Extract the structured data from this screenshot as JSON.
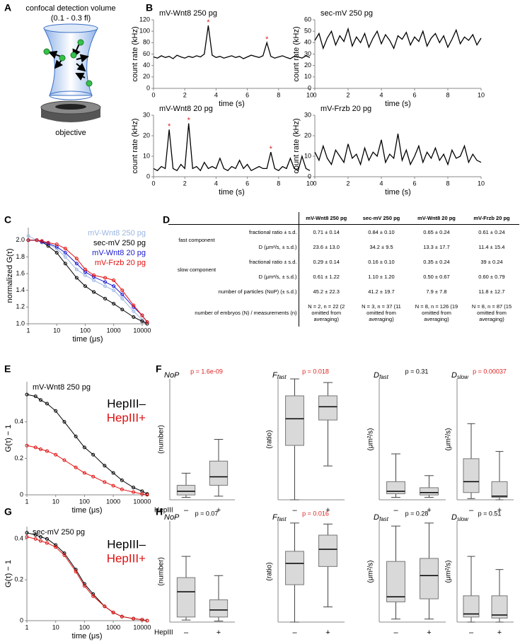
{
  "panel_labels": [
    "A",
    "B",
    "C",
    "D",
    "E",
    "F",
    "G",
    "H"
  ],
  "diagram": {
    "title": "confocal detection volume",
    "subtitle": "(0.1 - 0.3 fl)",
    "caption": "objective"
  },
  "chart_data": [
    {
      "type": "line",
      "title": "mV-Wnt8 250 pg",
      "xlabel": "time (s)",
      "ylabel": "count rate (kHz)",
      "xlim": [
        0,
        10
      ],
      "xticks": [
        0,
        2,
        4,
        6,
        8,
        10
      ],
      "ylim": [
        0,
        120
      ],
      "yticks": [
        0,
        20,
        40,
        60,
        80,
        100,
        120
      ],
      "color": "#000000",
      "x": [
        0,
        0.25,
        0.5,
        0.75,
        1,
        1.25,
        1.5,
        1.75,
        2,
        2.25,
        2.5,
        2.75,
        3,
        3.25,
        3.5,
        3.75,
        4,
        4.25,
        4.5,
        4.75,
        5,
        5.25,
        5.5,
        5.75,
        6,
        6.25,
        6.5,
        6.75,
        7,
        7.25,
        7.5,
        7.75,
        8,
        8.25,
        8.5,
        8.75,
        9,
        9.25,
        9.5,
        9.75,
        10
      ],
      "values": [
        55,
        53,
        57,
        54,
        56,
        52,
        58,
        55,
        53,
        56,
        54,
        57,
        55,
        60,
        110,
        58,
        54,
        56,
        53,
        55,
        57,
        54,
        56,
        52,
        55,
        58,
        56,
        54,
        57,
        80,
        56,
        53,
        55,
        57,
        54,
        52,
        56,
        55,
        53,
        57,
        54
      ],
      "annotations": [
        {
          "text": "*",
          "x": 3.5,
          "y": 110
        },
        {
          "text": "*",
          "x": 7.25,
          "y": 80
        }
      ],
      "annotation_color": "#e02020"
    },
    {
      "type": "line",
      "title": "sec-mV 250 pg",
      "xlabel": "time (s)",
      "ylabel": "count rate (kHz)",
      "xlim": [
        0,
        10
      ],
      "xticks": [
        0,
        2,
        4,
        6,
        8,
        10
      ],
      "ylim": [
        0,
        60
      ],
      "yticks": [
        0,
        10,
        20,
        30,
        40,
        50,
        60
      ],
      "color": "#000000",
      "x": [
        0,
        0.25,
        0.5,
        0.75,
        1,
        1.25,
        1.5,
        1.75,
        2,
        2.25,
        2.5,
        2.75,
        3,
        3.25,
        3.5,
        3.75,
        4,
        4.25,
        4.5,
        4.75,
        5,
        5.25,
        5.5,
        5.75,
        6,
        6.25,
        6.5,
        6.75,
        7,
        7.25,
        7.5,
        7.75,
        8,
        8.25,
        8.5,
        8.75,
        9,
        9.25,
        9.5,
        9.75,
        10
      ],
      "values": [
        42,
        48,
        35,
        44,
        50,
        38,
        46,
        41,
        52,
        37,
        45,
        40,
        48,
        36,
        44,
        50,
        39,
        47,
        42,
        35,
        46,
        43,
        49,
        38,
        45,
        41,
        50,
        37,
        44,
        48,
        40,
        46,
        36,
        43,
        51,
        39,
        45,
        42,
        47,
        38,
        44
      ]
    },
    {
      "type": "line",
      "title": "mV-Wnt8 20 pg",
      "xlabel": "time (s)",
      "ylabel": "count rate (kHz)",
      "xlim": [
        0,
        10
      ],
      "xticks": [
        0,
        2,
        4,
        6,
        8,
        10
      ],
      "ylim": [
        0,
        30
      ],
      "yticks": [
        0,
        10,
        20,
        30
      ],
      "color": "#000000",
      "x": [
        0,
        0.25,
        0.5,
        0.75,
        1,
        1.25,
        1.5,
        1.75,
        2,
        2.25,
        2.5,
        2.75,
        3,
        3.25,
        3.5,
        3.75,
        4,
        4.25,
        4.5,
        4.75,
        5,
        5.25,
        5.5,
        5.75,
        6,
        6.25,
        6.5,
        6.75,
        7,
        7.25,
        7.5,
        7.75,
        8,
        8.25,
        8.5,
        8.75,
        9,
        9.25,
        9.5,
        9.75,
        10
      ],
      "values": [
        4,
        3,
        5,
        4,
        23,
        4,
        3,
        6,
        4,
        26,
        4,
        5,
        3,
        7,
        4,
        5,
        4,
        9,
        4,
        3,
        5,
        4,
        8,
        4,
        6,
        3,
        4,
        5,
        4,
        4,
        12,
        4,
        3,
        5,
        4,
        9,
        4,
        3,
        10,
        4,
        3
      ],
      "annotations": [
        {
          "text": "*",
          "x": 1,
          "y": 23
        },
        {
          "text": "*",
          "x": 2.25,
          "y": 26
        },
        {
          "text": "*",
          "x": 7.5,
          "y": 12
        }
      ],
      "annotation_color": "#e02020"
    },
    {
      "type": "line",
      "title": "mV-Frzb 20 pg",
      "xlabel": "time (s)",
      "ylabel": "count rate (kHz)",
      "xlim": [
        0,
        10
      ],
      "xticks": [
        0,
        2,
        4,
        6,
        8,
        10
      ],
      "ylim": [
        0,
        30
      ],
      "yticks": [
        0,
        10,
        20,
        30
      ],
      "color": "#000000",
      "x": [
        0,
        0.25,
        0.5,
        0.75,
        1,
        1.25,
        1.5,
        1.75,
        2,
        2.25,
        2.5,
        2.75,
        3,
        3.25,
        3.5,
        3.75,
        4,
        4.25,
        4.5,
        4.75,
        5,
        5.25,
        5.5,
        5.75,
        6,
        6.25,
        6.5,
        6.75,
        7,
        7.25,
        7.5,
        7.75,
        8,
        8.25,
        8.5,
        8.75,
        9,
        9.25,
        9.5,
        9.75,
        10
      ],
      "values": [
        12,
        8,
        15,
        9,
        6,
        13,
        10,
        7,
        16,
        9,
        11,
        6,
        14,
        8,
        12,
        10,
        18,
        7,
        11,
        9,
        21,
        8,
        13,
        6,
        10,
        15,
        7,
        12,
        9,
        14,
        8,
        11,
        6,
        13,
        9,
        10,
        15,
        7,
        11,
        8,
        7
      ]
    },
    {
      "type": "line",
      "xscale": "log",
      "markers": true,
      "legend": "upper right",
      "xlabel": "time (μs)",
      "ylabel": "normalized G(τ)",
      "xlim": [
        1,
        15000
      ],
      "xticks": [
        1,
        10,
        100,
        1000,
        10000
      ],
      "ylim": [
        1.0,
        2.15
      ],
      "yticks": [
        {
          "value": 1.0,
          "label": "1.0"
        },
        1.2,
        1.4,
        1.6,
        1.8,
        {
          "value": 2.0,
          "label": "2.0"
        }
      ],
      "x": [
        1,
        2,
        3,
        5,
        10,
        20,
        50,
        100,
        200,
        500,
        1000,
        2000,
        5000,
        10000,
        15000
      ],
      "series": [
        {
          "name": "mV-Wnt8 250 pg",
          "color": "#9bb6e0",
          "values": [
            2.05,
            2.0,
            1.97,
            1.95,
            1.9,
            1.8,
            1.65,
            1.58,
            1.52,
            1.45,
            1.4,
            1.3,
            1.15,
            1.05,
            1.0
          ]
        },
        {
          "name": "sec-mV 250 pg",
          "color": "#000000",
          "values": [
            2.0,
            2.0,
            1.98,
            1.93,
            1.85,
            1.72,
            1.55,
            1.45,
            1.38,
            1.3,
            1.24,
            1.17,
            1.08,
            1.03,
            1.0
          ]
        },
        {
          "name": "mV-Wnt8 20 pg",
          "color": "#1a1ad0",
          "values": [
            2.0,
            2.0,
            1.98,
            1.96,
            1.92,
            1.85,
            1.72,
            1.62,
            1.56,
            1.5,
            1.45,
            1.35,
            1.2,
            1.1,
            1.02
          ]
        },
        {
          "name": "mV-Frzb 20 pg",
          "color": "#e01010",
          "values": [
            2.0,
            2.0,
            1.99,
            1.97,
            1.95,
            1.9,
            1.78,
            1.65,
            1.58,
            1.55,
            1.52,
            1.4,
            1.22,
            1.1,
            1.02
          ]
        }
      ]
    },
    {
      "type": "line",
      "xscale": "log",
      "markers": true,
      "legend": "upper right",
      "title": "mV-Wnt8 250 pg",
      "xlabel": "time (μs)",
      "ylabel": "G(τ) − 1",
      "xlim": [
        1,
        15000
      ],
      "xticks": [
        1,
        10,
        100,
        1000,
        10000
      ],
      "ylim": [
        0,
        0.62
      ],
      "yticks": [
        0,
        0.2,
        0.4
      ],
      "x": [
        1,
        2,
        3,
        5,
        10,
        20,
        50,
        100,
        200,
        500,
        1000,
        2000,
        5000,
        10000,
        15000
      ],
      "series": [
        {
          "name": "HepIII–",
          "color": "#000000",
          "values": [
            0.55,
            0.54,
            0.52,
            0.5,
            0.46,
            0.4,
            0.32,
            0.26,
            0.22,
            0.16,
            0.12,
            0.08,
            0.04,
            0.02,
            0.005
          ]
        },
        {
          "name": "HepIII+",
          "color": "#e01010",
          "values": [
            0.27,
            0.26,
            0.25,
            0.24,
            0.22,
            0.19,
            0.15,
            0.12,
            0.1,
            0.07,
            0.05,
            0.03,
            0.015,
            0.005,
            0
          ]
        }
      ]
    },
    {
      "type": "line",
      "xscale": "log",
      "markers": true,
      "legend": "upper right",
      "title": "sec-mV 250 pg",
      "xlabel": "time (μs)",
      "ylabel": "G(τ) − 1",
      "xlim": [
        1,
        15000
      ],
      "xticks": [
        1,
        10,
        100,
        1000,
        10000
      ],
      "ylim": [
        0,
        0.46
      ],
      "yticks": [
        0,
        0.2,
        0.4
      ],
      "x": [
        1,
        2,
        3,
        5,
        10,
        20,
        50,
        100,
        200,
        500,
        1000,
        2000,
        5000,
        10000,
        15000
      ],
      "series": [
        {
          "name": "HepIII–",
          "color": "#000000",
          "values": [
            0.43,
            0.42,
            0.41,
            0.4,
            0.37,
            0.33,
            0.25,
            0.18,
            0.13,
            0.07,
            0.04,
            0.02,
            0.01,
            0.005,
            0
          ]
        },
        {
          "name": "HepIII+",
          "color": "#e01010",
          "values": [
            0.41,
            0.4,
            0.39,
            0.38,
            0.36,
            0.32,
            0.24,
            0.17,
            0.12,
            0.07,
            0.04,
            0.02,
            0.01,
            0.005,
            0
          ]
        }
      ]
    },
    {
      "type": "box",
      "title": "NoP",
      "p_label": "p = 1.6e-09",
      "p_significant": true,
      "ylabel": "(number)",
      "xlabel": "HepIII",
      "categories": [
        "–",
        "+"
      ],
      "ylim": [
        0,
        1
      ],
      "boxes": [
        {
          "low": 0.02,
          "q1": 0.04,
          "median": 0.07,
          "q3": 0.12,
          "high": 0.22
        },
        {
          "low": 0.03,
          "q1": 0.12,
          "median": 0.19,
          "q3": 0.32,
          "high": 0.5
        }
      ]
    },
    {
      "type": "box",
      "title": "F",
      "title_sub": "fast",
      "p_label": "p = 0.018",
      "p_significant": true,
      "ylabel": "(ratio)",
      "categories": [
        "–",
        "+"
      ],
      "ylim": [
        0,
        1
      ],
      "boxes": [
        {
          "low": 0.0,
          "q1": 0.45,
          "median": 0.67,
          "q3": 0.86,
          "high": 1.0
        },
        {
          "low": 0.28,
          "q1": 0.66,
          "median": 0.77,
          "q3": 0.86,
          "high": 0.97
        }
      ]
    },
    {
      "type": "box",
      "title": "D",
      "title_sub": "fast",
      "p_label": "p = 0.31",
      "p_significant": false,
      "ylabel": "(μm²/s)",
      "categories": [
        "–",
        "+"
      ],
      "ylim": [
        0,
        1
      ],
      "boxes": [
        {
          "low": 0.02,
          "q1": 0.05,
          "median": 0.07,
          "q3": 0.15,
          "high": 0.38
        },
        {
          "low": 0.02,
          "q1": 0.04,
          "median": 0.06,
          "q3": 0.1,
          "high": 0.2
        }
      ]
    },
    {
      "type": "box",
      "title": "D",
      "title_sub": "slow",
      "p_label": "p = 0.00037",
      "p_significant": true,
      "ylabel": "(μm²/s)",
      "categories": [
        "–",
        "+"
      ],
      "ylim": [
        0,
        1
      ],
      "boxes": [
        {
          "low": 0.01,
          "q1": 0.06,
          "median": 0.15,
          "q3": 0.34,
          "high": 0.63
        },
        {
          "low": 0.0,
          "q1": 0.02,
          "median": 0.03,
          "q3": 0.15,
          "high": 0.4
        }
      ]
    },
    {
      "type": "box",
      "title": "NoP",
      "p_label": "p = 0.07",
      "p_significant": false,
      "ylabel": "(number)",
      "xlabel": "HepIII",
      "categories": [
        "–",
        "+"
      ],
      "ylim": [
        0,
        1
      ],
      "boxes": [
        {
          "low": 0.02,
          "q1": 0.05,
          "median": 0.3,
          "q3": 0.44,
          "high": 0.65
        },
        {
          "low": 0.01,
          "q1": 0.05,
          "median": 0.12,
          "q3": 0.22,
          "high": 0.46
        }
      ]
    },
    {
      "type": "box",
      "title": "F",
      "title_sub": "fast",
      "p_label": "p = 0.016",
      "p_significant": true,
      "ylabel": "(ratio)",
      "categories": [
        "–",
        "+"
      ],
      "ylim": [
        0,
        1
      ],
      "boxes": [
        {
          "low": 0.0,
          "q1": 0.37,
          "median": 0.58,
          "q3": 0.7,
          "high": 0.98
        },
        {
          "low": 0.15,
          "q1": 0.55,
          "median": 0.72,
          "q3": 0.86,
          "high": 0.97
        }
      ]
    },
    {
      "type": "box",
      "title": "D",
      "title_sub": "fast",
      "p_label": "p = 0.28",
      "p_significant": false,
      "ylabel": "(μm²/s)",
      "categories": [
        "–",
        "+"
      ],
      "ylim": [
        0,
        1
      ],
      "boxes": [
        {
          "low": 0.03,
          "q1": 0.2,
          "median": 0.25,
          "q3": 0.6,
          "high": 0.95
        },
        {
          "low": 0.03,
          "q1": 0.23,
          "median": 0.46,
          "q3": 0.63,
          "high": 0.98
        }
      ]
    },
    {
      "type": "box",
      "title": "D",
      "title_sub": "slow",
      "p_label": "p = 0.51",
      "p_significant": false,
      "ylabel": "(μm²/s)",
      "categories": [
        "–",
        "+"
      ],
      "ylim": [
        0,
        1
      ],
      "boxes": [
        {
          "low": 0.0,
          "q1": 0.05,
          "median": 0.08,
          "q3": 0.26,
          "high": 0.65
        },
        {
          "low": 0.0,
          "q1": 0.04,
          "median": 0.07,
          "q3": 0.26,
          "high": 0.52
        }
      ]
    }
  ],
  "table": {
    "columns": [
      "mV-Wnt8 250 pg",
      "sec-mV 250 pg",
      "mV-Wnt8 20 pg",
      "mV-Frzb 20 pg"
    ],
    "sections": [
      {
        "group": "fast component",
        "rows": [
          {
            "label": "fractional ratio ± s.d.",
            "cells": [
              "0.71 ± 0.14",
              "0.84 ± 0.10",
              "0.65 ± 0.24",
              "0.61 ± 0.24"
            ]
          },
          {
            "label": "D (μm²/s, ± s.d.)",
            "cells": [
              "23.6 ± 13.0",
              "34.2 ± 9.5",
              "13.3 ± 17.7",
              "11.4 ± 15.4"
            ]
          }
        ]
      },
      {
        "group": "slow component",
        "rows": [
          {
            "label": "fractional ratio ± s.d.",
            "cells": [
              "0.29 ± 0.14",
              "0.16 ± 0.10",
              "0.35 ± 0.24",
              "39 ± 0.24"
            ]
          },
          {
            "label": "D (μm²/s, ± s.d.)",
            "cells": [
              "0.61 ± 1.22",
              "1.10 ± 1.20",
              "0.50 ± 0.67",
              "0.60 ± 0.79"
            ]
          }
        ]
      },
      {
        "rows": [
          {
            "label": "number of particles (NoP) (± s.d.)",
            "cells": [
              "45.2 ± 22.3",
              "41.2 ± 19.7",
              "7.9 ± 7.8",
              "11.8 ± 12.7"
            ]
          }
        ]
      },
      {
        "rows": [
          {
            "label": "number of embryos (N) / measurements (n)",
            "cells": [
              "N = 2, n = 22 (2 omitted from averaging)",
              "N = 3, n = 37 (11 omitted from averaging)",
              "N = 8, n = 126 (19 omitted from averaging)",
              "N = 8, n = 87 (15 omitted from averaging)"
            ]
          }
        ]
      }
    ]
  }
}
